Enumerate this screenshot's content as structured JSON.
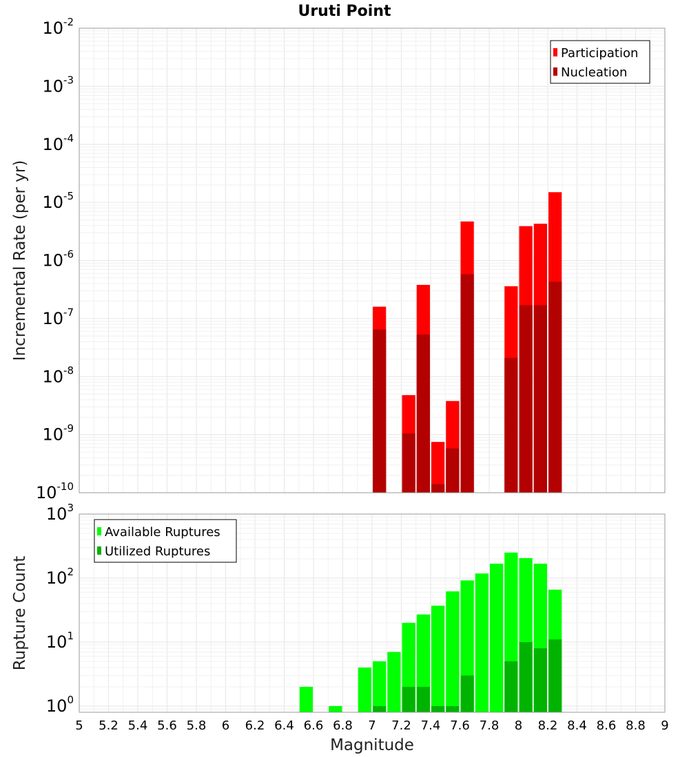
{
  "chart_data": [
    {
      "type": "bar",
      "title": "Uruti Point",
      "ylabel": "Incremental Rate (per yr)",
      "xlabel": "",
      "xlim": [
        5,
        9
      ],
      "ylim": [
        1e-10,
        0.01
      ],
      "yscale": "log",
      "grid": true,
      "legend_position": "top-right",
      "bin_width": 0.1,
      "series": [
        {
          "name": "Participation",
          "color": "#ff0000",
          "x": [
            7.05,
            7.25,
            7.35,
            7.45,
            7.55,
            7.65,
            7.95,
            8.05,
            8.15,
            8.25
          ],
          "values": [
            1.6e-07,
            4.8e-09,
            3.8e-07,
            7.5e-10,
            3.8e-09,
            4.7e-06,
            3.6e-07,
            3.9e-06,
            4.3e-06,
            1.5e-05
          ]
        },
        {
          "name": "Nucleation",
          "color": "#b30000",
          "x": [
            7.05,
            7.25,
            7.35,
            7.45,
            7.55,
            7.65,
            7.95,
            8.05,
            8.15,
            8.25
          ],
          "values": [
            6.5e-08,
            1.05e-09,
            5.3e-08,
            1.4e-10,
            5.8e-10,
            5.8e-07,
            2.1e-08,
            1.7e-07,
            1.7e-07,
            4.3e-07
          ]
        }
      ],
      "y_tick_exponents": [
        -10,
        -9,
        -8,
        -7,
        -6,
        -5,
        -4,
        -3,
        -2
      ]
    },
    {
      "type": "bar",
      "ylabel": "Rupture Count",
      "xlabel": "Magnitude",
      "xlim": [
        5,
        9
      ],
      "ylim": [
        0.8,
        1000
      ],
      "yscale": "log",
      "grid": true,
      "legend_position": "top-left",
      "bin_width": 0.1,
      "series": [
        {
          "name": "Available Ruptures",
          "color": "#00ff00",
          "x": [
            6.55,
            6.75,
            6.95,
            7.05,
            7.15,
            7.25,
            7.35,
            7.45,
            7.55,
            7.65,
            7.75,
            7.85,
            7.95,
            8.05,
            8.15,
            8.25
          ],
          "values": [
            2,
            1,
            4,
            5,
            7,
            20,
            27,
            37,
            62,
            92,
            118,
            168,
            250,
            205,
            168,
            66
          ]
        },
        {
          "name": "Utilized Ruptures",
          "color": "#00b300",
          "x": [
            7.05,
            7.25,
            7.35,
            7.45,
            7.55,
            7.65,
            7.95,
            8.05,
            8.15,
            8.25
          ],
          "values": [
            1,
            2,
            2,
            1,
            1,
            3,
            5,
            10,
            8,
            11
          ]
        }
      ],
      "y_tick_exponents": [
        0,
        1,
        2,
        3
      ],
      "x_ticks": [
        "5",
        "5.2",
        "5.4",
        "5.6",
        "5.8",
        "6",
        "6.2",
        "6.4",
        "6.6",
        "6.8",
        "7",
        "7.2",
        "7.4",
        "7.6",
        "7.8",
        "8",
        "8.2",
        "8.4",
        "8.6",
        "8.8",
        "9"
      ]
    }
  ]
}
